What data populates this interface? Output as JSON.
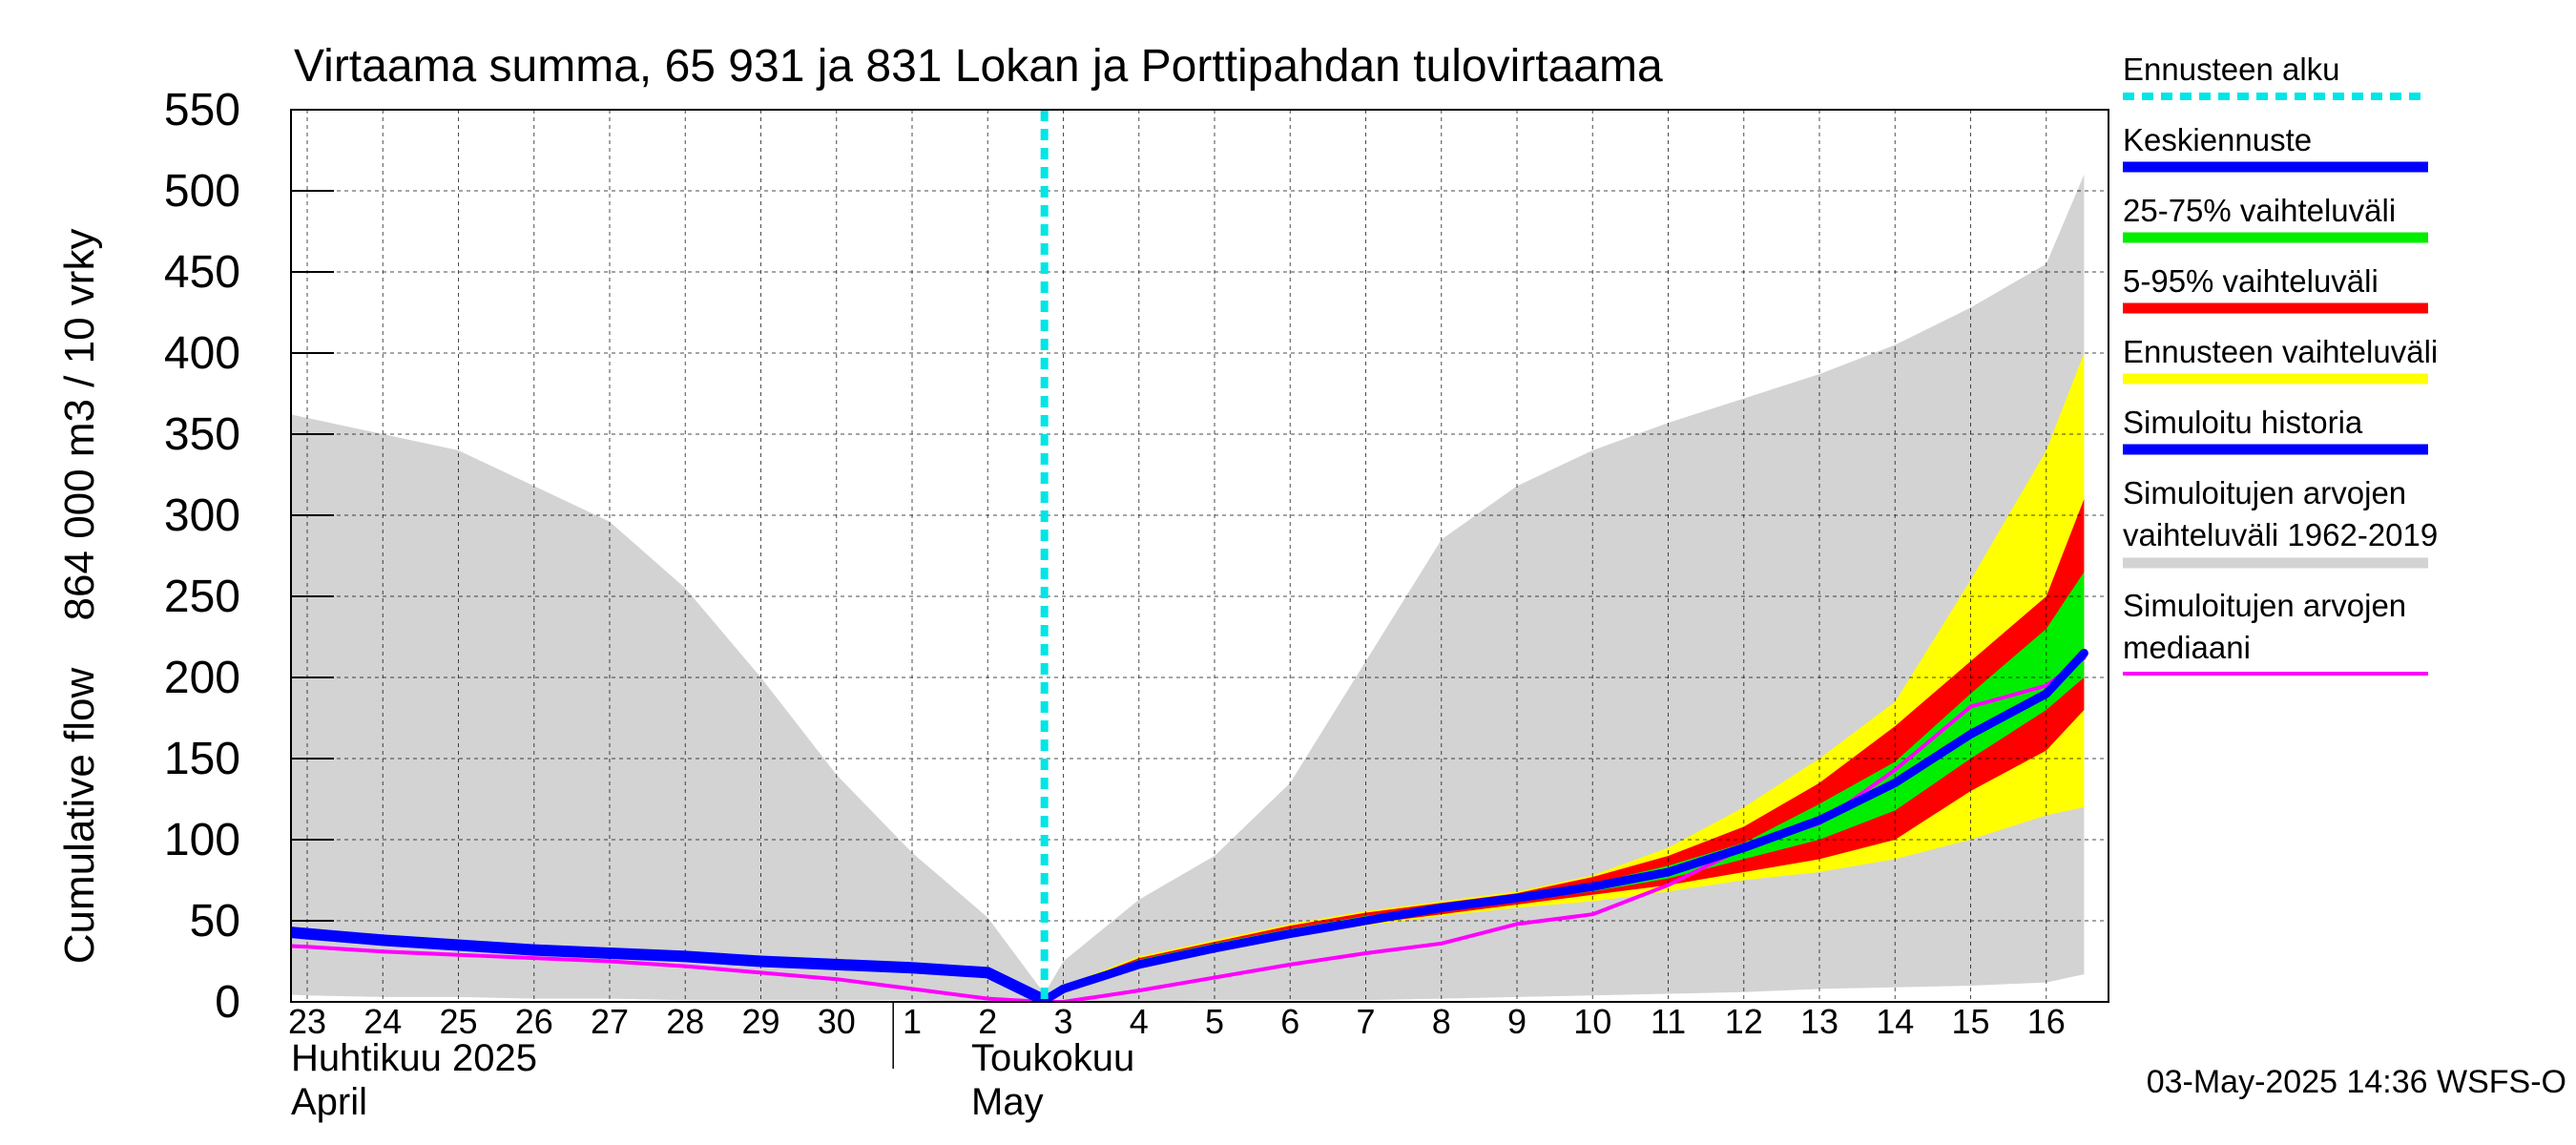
{
  "chart_data": {
    "type": "area",
    "title": "Virtaama summa, 65 931 ja 831 Lokan ja Porttipahdan tulovirtaama",
    "ylabel_fi": "864 000 m3 / 10 vrky",
    "ylabel_en": "Cumulative flow",
    "ylim": [
      0,
      550
    ],
    "yticks": [
      "0",
      "50",
      "100",
      "150",
      "200",
      "250",
      "300",
      "350",
      "400",
      "450",
      "500",
      "550"
    ],
    "xlim": [
      0,
      24
    ],
    "xticks": [
      {
        "x": 0,
        "label": "23"
      },
      {
        "x": 1,
        "label": "24"
      },
      {
        "x": 2,
        "label": "25"
      },
      {
        "x": 3,
        "label": "26"
      },
      {
        "x": 4,
        "label": "27"
      },
      {
        "x": 5,
        "label": "28"
      },
      {
        "x": 6,
        "label": "29"
      },
      {
        "x": 7,
        "label": "30"
      },
      {
        "x": 8,
        "label": "1"
      },
      {
        "x": 9,
        "label": "2"
      },
      {
        "x": 10,
        "label": "3"
      },
      {
        "x": 11,
        "label": "4"
      },
      {
        "x": 12,
        "label": "5"
      },
      {
        "x": 13,
        "label": "6"
      },
      {
        "x": 14,
        "label": "7"
      },
      {
        "x": 15,
        "label": "8"
      },
      {
        "x": 16,
        "label": "9"
      },
      {
        "x": 17,
        "label": "10"
      },
      {
        "x": 18,
        "label": "11"
      },
      {
        "x": 19,
        "label": "12"
      },
      {
        "x": 20,
        "label": "13"
      },
      {
        "x": 21,
        "label": "14"
      },
      {
        "x": 22,
        "label": "15"
      },
      {
        "x": 23,
        "label": "16"
      }
    ],
    "month_labels": {
      "april_fi": "Huhtikuu  2025",
      "april_en": "April",
      "may_fi": "Toukokuu",
      "may_en": "May"
    },
    "month_boundary_x": 7.75,
    "forecast_start_x": 9.75,
    "grid": true,
    "legend_position": "right",
    "colors": {
      "history_range": "#d3d3d3",
      "forecast_range": "#ffff00",
      "p5_95": "#ff0000",
      "p25_75": "#00ee00",
      "mean": "#0000ff",
      "history": "#0000ff",
      "median": "#ff00ff",
      "forecast_start": "#00e5e5",
      "grid": "#000000"
    },
    "series": [
      {
        "name": "Simuloitujen arvojen vaihteluväli 1962-2019",
        "kind": "band",
        "x": [
          -0.5,
          0,
          1,
          2,
          3,
          4,
          5,
          6,
          7,
          8,
          9,
          9.75,
          10,
          11,
          12,
          13,
          14,
          15,
          16,
          17,
          18,
          19,
          20,
          21,
          22,
          23,
          23.5
        ],
        "upper": [
          365,
          360,
          350,
          340,
          318,
          296,
          255,
          200,
          140,
          92,
          52,
          5,
          25,
          63,
          90,
          135,
          210,
          285,
          318,
          340,
          357,
          372,
          387,
          405,
          428,
          455,
          510
        ],
        "lower": [
          5,
          4,
          3,
          3,
          2,
          2,
          1,
          1,
          1,
          1,
          0,
          0,
          0,
          0,
          1,
          1,
          1,
          2,
          3,
          4,
          5,
          6,
          8,
          9,
          10,
          12,
          17
        ]
      },
      {
        "name": "Ennusteen vaihteluväli",
        "kind": "band",
        "x": [
          9.75,
          10,
          11,
          12,
          13,
          14,
          15,
          16,
          17,
          18,
          19,
          20,
          21,
          22,
          23,
          23.5
        ],
        "upper": [
          0,
          10,
          28,
          38,
          48,
          56,
          62,
          68,
          78,
          95,
          120,
          150,
          185,
          260,
          340,
          400
        ],
        "lower": [
          0,
          8,
          22,
          32,
          40,
          47,
          53,
          58,
          62,
          68,
          75,
          80,
          88,
          100,
          115,
          120
        ]
      },
      {
        "name": "5-95% vaihteluväli",
        "kind": "band",
        "x": [
          9.75,
          10,
          11,
          12,
          13,
          14,
          15,
          16,
          17,
          18,
          19,
          20,
          21,
          22,
          23,
          23.5
        ],
        "upper": [
          0,
          9,
          27,
          37,
          47,
          55,
          61,
          67,
          77,
          90,
          108,
          135,
          170,
          210,
          250,
          310
        ],
        "lower": [
          0,
          8,
          23,
          33,
          41,
          48,
          54,
          60,
          66,
          72,
          80,
          88,
          100,
          130,
          155,
          180
        ]
      },
      {
        "name": "25-75% vaihteluväli",
        "kind": "band",
        "x": [
          9.75,
          10,
          11,
          12,
          13,
          14,
          15,
          16,
          17,
          18,
          19,
          20,
          21,
          22,
          23,
          23.5
        ],
        "upper": [
          0,
          9,
          26,
          36,
          45,
          53,
          59,
          65,
          73,
          84,
          98,
          122,
          148,
          190,
          230,
          265
        ],
        "lower": [
          0,
          8,
          24,
          34,
          42,
          50,
          56,
          62,
          68,
          76,
          88,
          100,
          118,
          150,
          180,
          200
        ]
      },
      {
        "name": "Simuloitujen arvojen mediaani",
        "kind": "line",
        "x": [
          -0.5,
          0,
          1,
          2,
          3,
          4,
          5,
          6,
          7,
          8,
          9,
          9.75,
          10,
          11,
          12,
          13,
          14,
          15,
          16,
          17,
          18,
          19,
          20,
          21,
          22,
          23,
          23.5
        ],
        "values": [
          35,
          34,
          31,
          29,
          27,
          25,
          22,
          18,
          14,
          8,
          2,
          0,
          0,
          7,
          15,
          23,
          30,
          36,
          48,
          54,
          72,
          95,
          110,
          143,
          182,
          195,
          212
        ]
      },
      {
        "name": "Simuloitu historia",
        "kind": "line",
        "x": [
          -0.5,
          0,
          1,
          2,
          3,
          4,
          5,
          6,
          7,
          8,
          9,
          9.75
        ],
        "values": [
          44,
          42,
          38,
          35,
          32,
          30,
          28,
          25,
          23,
          21,
          18,
          1
        ]
      },
      {
        "name": "Keskiennuste",
        "kind": "line",
        "x": [
          9.75,
          10,
          11,
          12,
          13,
          14,
          15,
          16,
          17,
          18,
          19,
          20,
          21,
          22,
          23,
          23.5
        ],
        "values": [
          1,
          8,
          23,
          33,
          42,
          50,
          58,
          64,
          71,
          80,
          95,
          112,
          135,
          165,
          190,
          215
        ]
      }
    ],
    "legend": [
      {
        "label": "Ennusteen alku",
        "swatch": "dashed",
        "color": "#00e5e5"
      },
      {
        "label": "Keskiennuste",
        "swatch": "line",
        "color": "#0000ff"
      },
      {
        "label": "25-75% vaihteluväli",
        "swatch": "line",
        "color": "#00ee00"
      },
      {
        "label": "5-95% vaihteluväli",
        "swatch": "line",
        "color": "#ff0000"
      },
      {
        "label": "Ennusteen vaihteluväli",
        "swatch": "line",
        "color": "#ffff00"
      },
      {
        "label": "Simuloitu historia",
        "swatch": "line",
        "color": "#0000ff"
      },
      {
        "label": "Simuloitujen arvojen",
        "label2": "vaihteluväli 1962-2019",
        "swatch": "line",
        "color": "#d3d3d3"
      },
      {
        "label": "Simuloitujen arvojen",
        "label2": "mediaani",
        "swatch": "thin",
        "color": "#ff00ff"
      }
    ],
    "timestamp": "03-May-2025 14:36 WSFS-O"
  }
}
